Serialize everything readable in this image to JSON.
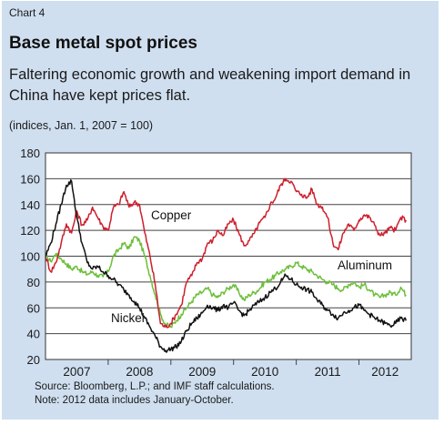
{
  "header": {
    "chart_label": "Chart 4",
    "title": "Base metal spot prices",
    "subtitle": "Faltering economic growth and weakening import demand in China have kept prices flat.",
    "units": "(indices, Jan. 1, 2007 = 100)"
  },
  "footer": {
    "source": "Source: Bloomberg, L.P.; and IMF staff calculations.",
    "note": "Note: 2012 data includes January-October."
  },
  "colors": {
    "panel": "#cfdff0",
    "copper": "#cc1f2d",
    "aluminum": "#6cbf3a",
    "nickel": "#111111"
  },
  "chart_data": {
    "type": "line",
    "ylim": [
      20,
      180
    ],
    "yticks": [
      20,
      40,
      60,
      80,
      100,
      120,
      140,
      160,
      180
    ],
    "xlim": [
      0,
      70
    ],
    "x_unit": "months since Jan. 2007",
    "year_labels": [
      "2007",
      "2008",
      "2009",
      "2010",
      "2011",
      "2012"
    ],
    "grid": true,
    "series": [
      {
        "name": "Copper",
        "x": [
          0,
          1,
          2,
          3,
          4,
          5,
          6,
          7,
          8,
          9,
          10,
          11,
          12,
          13,
          14,
          15,
          16,
          17,
          18,
          19,
          20,
          21,
          22,
          23,
          24,
          25,
          26,
          27,
          28,
          29,
          30,
          31,
          32,
          33,
          34,
          35,
          36,
          37,
          38,
          39,
          40,
          41,
          42,
          43,
          44,
          45,
          46,
          47,
          48,
          49,
          50,
          51,
          52,
          53,
          54,
          55,
          56,
          57,
          58,
          59,
          60,
          61,
          62,
          63,
          64,
          65,
          66,
          67,
          68,
          69
        ],
        "values": [
          100,
          88,
          95,
          110,
          125,
          118,
          135,
          124,
          128,
          138,
          130,
          123,
          120,
          138,
          140,
          150,
          138,
          142,
          140,
          118,
          100,
          78,
          48,
          45,
          48,
          55,
          62,
          80,
          85,
          95,
          98,
          110,
          112,
          120,
          116,
          125,
          128,
          118,
          108,
          112,
          118,
          126,
          130,
          140,
          145,
          155,
          160,
          158,
          150,
          148,
          145,
          152,
          140,
          138,
          130,
          110,
          105,
          118,
          125,
          120,
          128,
          132,
          130,
          124,
          116,
          118,
          122,
          120,
          130,
          128
        ]
      },
      {
        "name": "Aluminum",
        "x": [
          0,
          1,
          2,
          3,
          4,
          5,
          6,
          7,
          8,
          9,
          10,
          11,
          12,
          13,
          14,
          15,
          16,
          17,
          18,
          19,
          20,
          21,
          22,
          23,
          24,
          25,
          26,
          27,
          28,
          29,
          30,
          31,
          32,
          33,
          34,
          35,
          36,
          37,
          38,
          39,
          40,
          41,
          42,
          43,
          44,
          45,
          46,
          47,
          48,
          49,
          50,
          51,
          52,
          53,
          54,
          55,
          56,
          57,
          58,
          59,
          60,
          61,
          62,
          63,
          64,
          65,
          66,
          67,
          68,
          69
        ],
        "values": [
          100,
          96,
          102,
          98,
          94,
          90,
          92,
          88,
          86,
          88,
          85,
          84,
          88,
          100,
          105,
          110,
          106,
          115,
          112,
          100,
          85,
          70,
          55,
          47,
          45,
          50,
          55,
          60,
          65,
          70,
          72,
          75,
          70,
          68,
          72,
          75,
          78,
          72,
          66,
          70,
          72,
          75,
          80,
          82,
          85,
          88,
          90,
          92,
          95,
          92,
          90,
          88,
          85,
          82,
          80,
          78,
          75,
          74,
          78,
          80,
          76,
          78,
          74,
          70,
          68,
          70,
          72,
          70,
          76,
          70
        ]
      },
      {
        "name": "Nickel",
        "x": [
          0,
          1,
          2,
          3,
          4,
          5,
          6,
          7,
          8,
          9,
          10,
          11,
          12,
          13,
          14,
          15,
          16,
          17,
          18,
          19,
          20,
          21,
          22,
          23,
          24,
          25,
          26,
          27,
          28,
          29,
          30,
          31,
          32,
          33,
          34,
          35,
          36,
          37,
          38,
          39,
          40,
          41,
          42,
          43,
          44,
          45,
          46,
          47,
          48,
          49,
          50,
          51,
          52,
          53,
          54,
          55,
          56,
          57,
          58,
          59,
          60,
          61,
          62,
          63,
          64,
          65,
          66,
          67,
          68,
          69
        ],
        "values": [
          100,
          110,
          125,
          140,
          155,
          158,
          130,
          110,
          95,
          90,
          92,
          88,
          85,
          82,
          78,
          74,
          70,
          65,
          60,
          52,
          45,
          38,
          30,
          27,
          28,
          30,
          34,
          42,
          48,
          52,
          56,
          62,
          60,
          58,
          62,
          60,
          64,
          58,
          54,
          58,
          62,
          65,
          68,
          72,
          75,
          80,
          85,
          82,
          78,
          76,
          74,
          72,
          66,
          62,
          58,
          55,
          52,
          56,
          58,
          60,
          62,
          58,
          55,
          52,
          50,
          48,
          46,
          48,
          52,
          50
        ]
      }
    ],
    "annotations": [
      {
        "series": "Copper",
        "text": "Copper"
      },
      {
        "series": "Aluminum",
        "text": "Aluminum"
      },
      {
        "series": "Nickel",
        "text": "Nickel"
      }
    ]
  }
}
